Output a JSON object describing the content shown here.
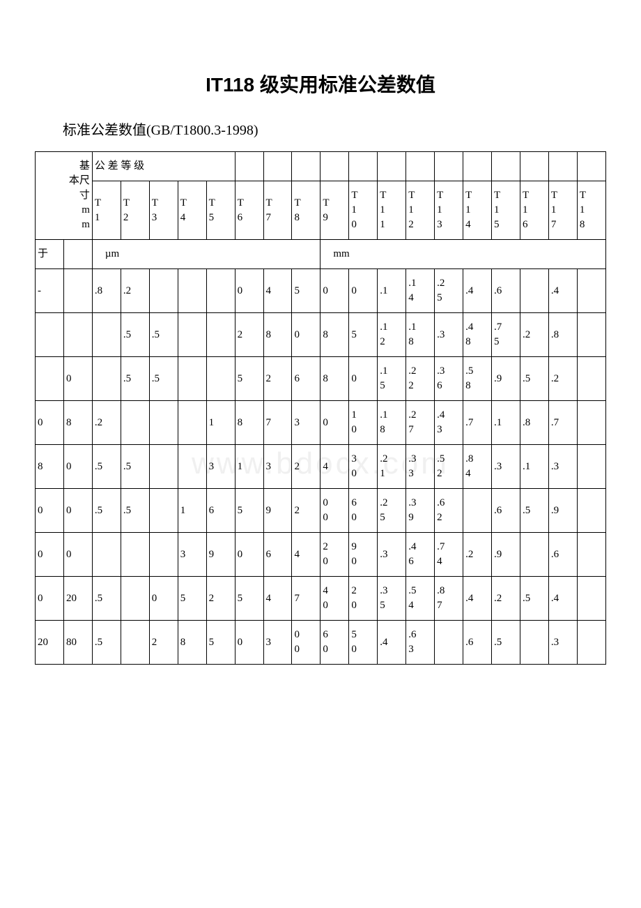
{
  "title": "IT118 级实用标准公差数值",
  "subtitle": "标准公差数值(GB/T1800.3-1998)",
  "watermark": "www.bdocx.com",
  "table": {
    "header_row1_col1": "基本尺寸 mm",
    "header_row1_col2": "公 差 等 级",
    "it_labels": [
      "T1",
      "T2",
      "T3",
      "T4",
      "T5",
      "T6",
      "T7",
      "T8",
      "T9",
      "T10",
      "T11",
      "T12",
      "T13",
      "T14",
      "T15",
      "T16",
      "T17",
      "T18"
    ],
    "unit_left": "于",
    "unit_um": "µm",
    "unit_mm": "mm",
    "rows": [
      [
        "-",
        "",
        ".8",
        ".2",
        "",
        "",
        "",
        "0",
        "4",
        "5",
        "0",
        "0",
        ".1",
        ".14",
        ".25",
        ".4",
        ".6",
        "",
        ".4"
      ],
      [
        "",
        "",
        "",
        ".5",
        ".5",
        "",
        "",
        "2",
        "8",
        "0",
        "8",
        "5",
        ".12",
        ".18",
        ".3",
        ".48",
        ".75",
        ".2",
        ".8"
      ],
      [
        "",
        "0",
        "",
        ".5",
        ".5",
        "",
        "",
        "5",
        "2",
        "6",
        "8",
        "0",
        ".15",
        ".22",
        ".36",
        ".58",
        ".9",
        ".5",
        ".2"
      ],
      [
        "0",
        "8",
        ".2",
        "",
        "",
        "",
        "1",
        "8",
        "7",
        "3",
        "0",
        "10",
        ".18",
        ".27",
        ".43",
        ".7",
        ".1",
        ".8",
        ".7"
      ],
      [
        "8",
        "0",
        ".5",
        ".5",
        "",
        "",
        "3",
        "1",
        "3",
        "2",
        "4",
        "30",
        ".21",
        ".33",
        ".52",
        ".84",
        ".3",
        ".1",
        ".3"
      ],
      [
        "0",
        "0",
        ".5",
        ".5",
        "",
        "1",
        "6",
        "5",
        "9",
        "2",
        "00",
        "60",
        ".25",
        ".39",
        ".62",
        "",
        ".6",
        ".5",
        ".9"
      ],
      [
        "0",
        "0",
        "",
        "",
        "",
        "3",
        "9",
        "0",
        "6",
        "4",
        "20",
        "90",
        ".3",
        ".46",
        ".74",
        ".2",
        ".9",
        "",
        ".6"
      ],
      [
        "0",
        "20",
        ".5",
        "",
        "0",
        "5",
        "2",
        "5",
        "4",
        "7",
        "40",
        "20",
        ".35",
        ".54",
        ".87",
        ".4",
        ".2",
        ".5",
        ".4"
      ],
      [
        "20",
        "80",
        ".5",
        "",
        "2",
        "8",
        "5",
        "0",
        "3",
        "00",
        "60",
        "50",
        ".4",
        ".63",
        "",
        ".6",
        ".5",
        "",
        ".3"
      ]
    ]
  },
  "style": {
    "background_color": "#ffffff",
    "text_color": "#000000",
    "border_color": "#000000",
    "title_fontsize": 28,
    "subtitle_fontsize": 20,
    "cell_fontsize": 15,
    "watermark_color": "#f0f0f0"
  }
}
